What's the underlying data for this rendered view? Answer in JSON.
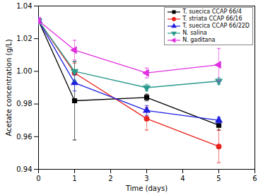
{
  "chart_data": {
    "type": "line",
    "x_label": "Time (days)",
    "y_label": "Acetate concentration (g/L)",
    "x": [
      0,
      1,
      3,
      5
    ],
    "xlim": [
      0,
      6
    ],
    "xticks": [
      0,
      1,
      2,
      3,
      4,
      5,
      6
    ],
    "ylim": [
      0.94,
      1.04
    ],
    "yticks": [
      0.94,
      0.96,
      0.98,
      {
        "value": 1,
        "label": "1.00"
      },
      1.02,
      1.04
    ],
    "legend": "top-right",
    "series": [
      {
        "name": "T. suecica CCAP 66/4",
        "color": "#000000",
        "marker": "square",
        "line_style": "solid",
        "values": [
          1.031,
          0.982,
          0.984,
          0.967
        ],
        "errors": [
          0,
          0.024,
          0.002,
          0.003
        ]
      },
      {
        "name": "T. striata CCAP 66/16",
        "color": "#e8221c",
        "marker": "circle",
        "line_style": "solid",
        "values": [
          1.031,
          0.999,
          0.971,
          0.954
        ],
        "errors": [
          0,
          0.006,
          0.007,
          0.01
        ]
      },
      {
        "name": "T. suecica CCAP 66/22D",
        "color": "#1f1fe0",
        "marker": "triangle-up",
        "line_style": "solid",
        "values": [
          1.031,
          0.993,
          0.976,
          0.97
        ],
        "errors": [
          0,
          0.005,
          0.003,
          0.002
        ]
      },
      {
        "name": "N. salina",
        "color": "#2a9a8c",
        "marker": "triangle-down",
        "line_style": "solid",
        "values": [
          1.031,
          1.0,
          0.99,
          0.994
        ],
        "errors": [
          0,
          0.006,
          0.002,
          0.002
        ]
      },
      {
        "name": "N. gaditana",
        "color": "#e030e0",
        "marker": "triangle-left",
        "line_style": "solid",
        "values": [
          1.031,
          1.013,
          0.999,
          1.004
        ],
        "errors": [
          0,
          0.006,
          0.003,
          0.01
        ]
      }
    ]
  }
}
